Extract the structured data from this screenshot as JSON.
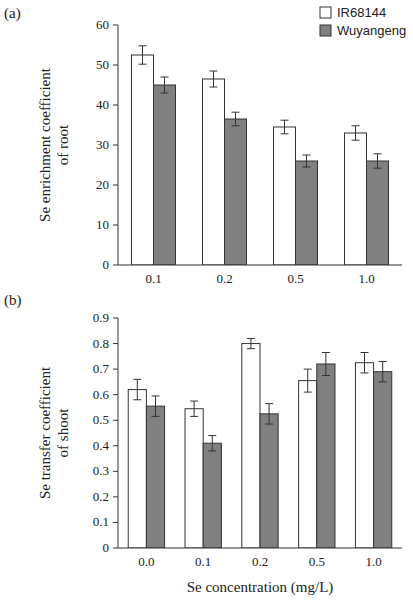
{
  "chart_data": [
    {
      "type": "bar",
      "title": "(a)",
      "ylabel": [
        "Se enrichment coefficient",
        "of root"
      ],
      "categories": [
        "0.1",
        "0.2",
        "0.5",
        "1.0"
      ],
      "series": [
        {
          "name": "IR68144",
          "color": "#ffffff",
          "values": [
            52.5,
            46.5,
            34.5,
            33
          ],
          "errors": [
            2.3,
            2,
            1.7,
            1.8
          ]
        },
        {
          "name": "Wuyangeng",
          "color": "#808080",
          "values": [
            45,
            36.5,
            26,
            26
          ],
          "errors": [
            2,
            1.7,
            1.5,
            1.8
          ]
        }
      ],
      "ylim": [
        0,
        60
      ],
      "yticks": [
        0,
        10,
        20,
        30,
        40,
        50,
        60
      ],
      "legend": "upper right",
      "grid": false
    },
    {
      "type": "bar",
      "title": "(b)",
      "ylabel": [
        "Se transfer coefficient",
        "of shoot"
      ],
      "xlabel": "Se concentration (mg/L)",
      "categories": [
        "0.0",
        "0.1",
        "0.2",
        "0.5",
        "1.0"
      ],
      "series": [
        {
          "color": "#ffffff",
          "values": [
            0.62,
            0.545,
            0.8,
            0.655,
            0.725
          ],
          "errors": [
            0.04,
            0.03,
            0.02,
            0.045,
            0.04
          ]
        },
        {
          "color": "#808080",
          "values": [
            0.555,
            0.41,
            0.525,
            0.72,
            0.69
          ],
          "errors": [
            0.04,
            0.03,
            0.04,
            0.045,
            0.04
          ]
        }
      ],
      "ylim": [
        0,
        0.9
      ],
      "yticks": [
        0,
        0.1,
        0.2,
        0.3,
        0.4,
        0.5,
        0.6,
        0.7,
        0.8,
        0.9
      ],
      "grid": false
    }
  ]
}
